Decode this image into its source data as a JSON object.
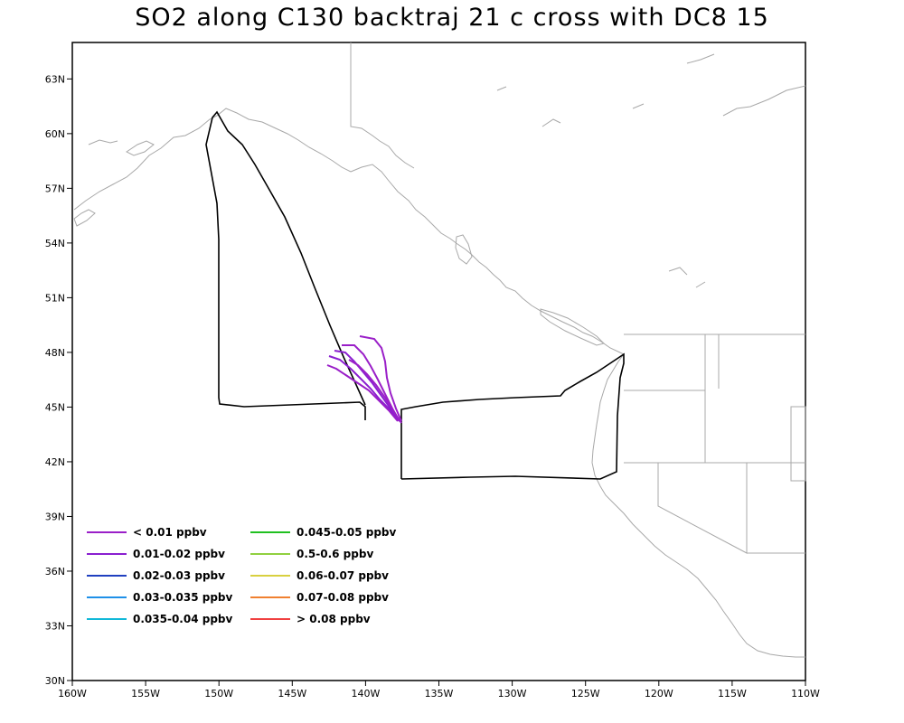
{
  "title": "SO2 along C130 backtraj 21 c cross with DC8 15",
  "map": {
    "lon_range": [
      -160,
      -110
    ],
    "lat_range": [
      30,
      65
    ],
    "x_ticks": [
      "160W",
      "155W",
      "150W",
      "145W",
      "140W",
      "135W",
      "130W",
      "125W",
      "120W",
      "115W",
      "110W"
    ],
    "y_ticks": [
      "30N",
      "33N",
      "36N",
      "39N",
      "42N",
      "45N",
      "48N",
      "51N",
      "54N",
      "57N",
      "60N",
      "63N"
    ],
    "coastline_color": "#a8a8a8",
    "flight_track_color": "#000000"
  },
  "legend": {
    "items": [
      {
        "label": "< 0.01 ppbv",
        "color": "#9a1fc8"
      },
      {
        "label": "0.01-0.02 ppbv",
        "color": "#8a1fd0"
      },
      {
        "label": "0.02-0.03 ppbv",
        "color": "#2040c0"
      },
      {
        "label": "0.03-0.035 ppbv",
        "color": "#1e90e8"
      },
      {
        "label": "0.035-0.04 ppbv",
        "color": "#10b8d8"
      },
      {
        "label": "0.045-0.05 ppbv",
        "color": "#20c020"
      },
      {
        "label": "0.5-0.6 ppbv",
        "color": "#90d040"
      },
      {
        "label": "0.06-0.07 ppbv",
        "color": "#d8d040"
      },
      {
        "label": "0.07-0.08 ppbv",
        "color": "#f08030"
      },
      {
        "label": "> 0.08 ppbv",
        "color": "#f04040"
      }
    ]
  }
}
